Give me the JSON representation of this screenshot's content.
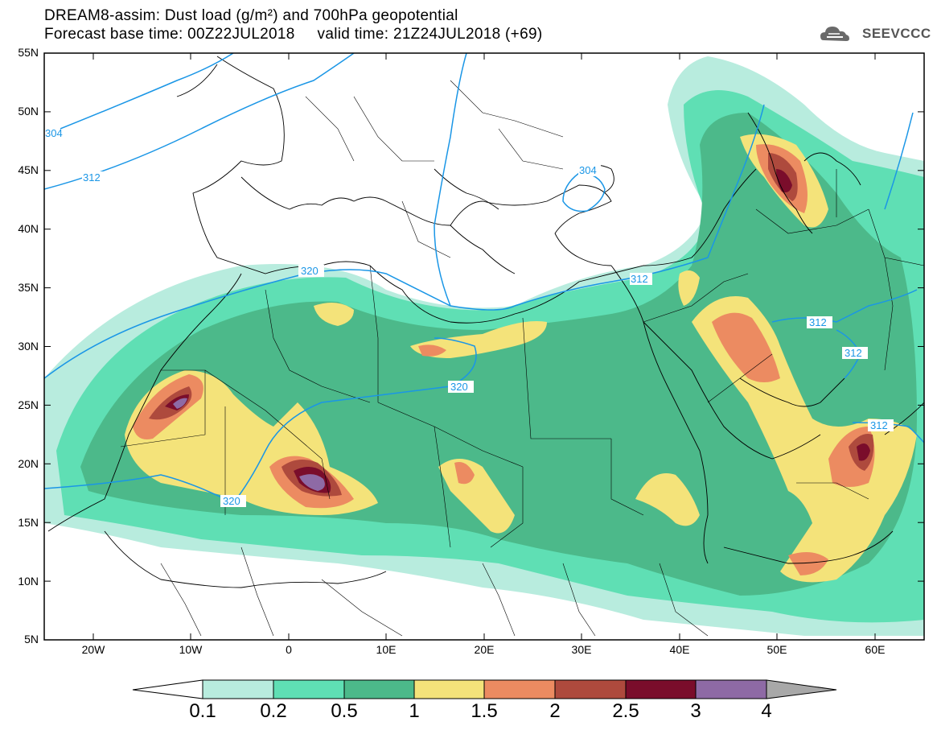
{
  "header": {
    "line1": "DREAM8-assim: Dust load (g/m²) and 700hPa geopotential",
    "line2": "Forecast base time: 00Z22JUL2018     valid time: 21Z24JUL2018 (+69)"
  },
  "logo": {
    "text": "SEEVCCC",
    "icon": "cloud-logo-icon"
  },
  "map": {
    "lat_labels": [
      "55N",
      "50N",
      "45N",
      "40N",
      "35N",
      "30N",
      "25N",
      "20N",
      "15N",
      "10N",
      "5N"
    ],
    "lon_labels": [
      "20W",
      "10W",
      "0",
      "10E",
      "20E",
      "30E",
      "40E",
      "50E",
      "60E"
    ],
    "contour_labels": [
      "304",
      "312",
      "320",
      "304",
      "312",
      "312",
      "312",
      "320",
      "320",
      "312"
    ]
  },
  "colorbar": {
    "ticks": [
      "0.1",
      "0.2",
      "0.5",
      "1",
      "1.5",
      "2",
      "2.5",
      "3",
      "4"
    ],
    "colors": [
      "#b8ecde",
      "#5fdfb4",
      "#4cb98a",
      "#f4e37a",
      "#ec8b61",
      "#ae4a3d",
      "#7a0d2b",
      "#8e6aa5"
    ],
    "below_color": "#ffffff",
    "above_color": "#a8a8a8"
  },
  "colors": {
    "geopotential_contour": "#1a96e6",
    "borders": "#000000"
  }
}
